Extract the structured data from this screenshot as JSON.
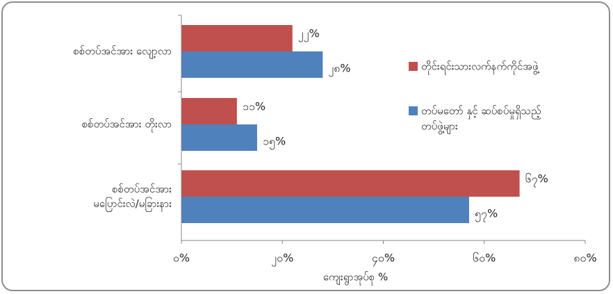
{
  "chart_data": {
    "type": "bar",
    "orientation": "horizontal",
    "categories": [
      "စစ်တပ်အင်အား လျော့လာ",
      "စစ်တပ်အင်အား တိုးလာ",
      "စစ်တပ်အင်အား မပြောင်းလဲ/မခြားနား"
    ],
    "category_lines": [
      [
        "စစ်တပ်အင်အား လျော့လာ"
      ],
      [
        "စစ်တပ်အင်အား တိုးလာ"
      ],
      [
        "စစ်တပ်အင်အား",
        "မပြောင်းလဲ/မခြားနား"
      ]
    ],
    "series": [
      {
        "name": "တိုင်းရင်းသားလက်နက်ကိုင်အဖွဲ့",
        "color": "#c0504d",
        "values": [
          22,
          11,
          67
        ],
        "labels": [
          "၂၂%",
          "၁၁%",
          "၆၇%"
        ]
      },
      {
        "name": "တပ်မတော် နှင့် ဆပ်စပ်မှုရှိသည့် တပ်ဖွဲ့များ",
        "name_lines": [
          "တပ်မတော် နှင့် ဆပ်စပ်မှုရှိသည့်",
          "တပ်ဖွဲ့များ"
        ],
        "color": "#4f81bd",
        "values": [
          28,
          15,
          57
        ],
        "labels": [
          "၂၈%",
          "၁၅%",
          "၅၇%"
        ]
      }
    ],
    "xlim": [
      0,
      80
    ],
    "xticks": [
      0,
      20,
      40,
      60,
      80
    ],
    "xtick_labels": [
      "၀%",
      "၂၀%",
      "၄၀%",
      "၆၀%",
      "၈၀%"
    ],
    "xlabel": "ကျေးရွာအုပ်စု %",
    "ylabel": "",
    "title": "",
    "grid": false,
    "legend_position": "right"
  }
}
